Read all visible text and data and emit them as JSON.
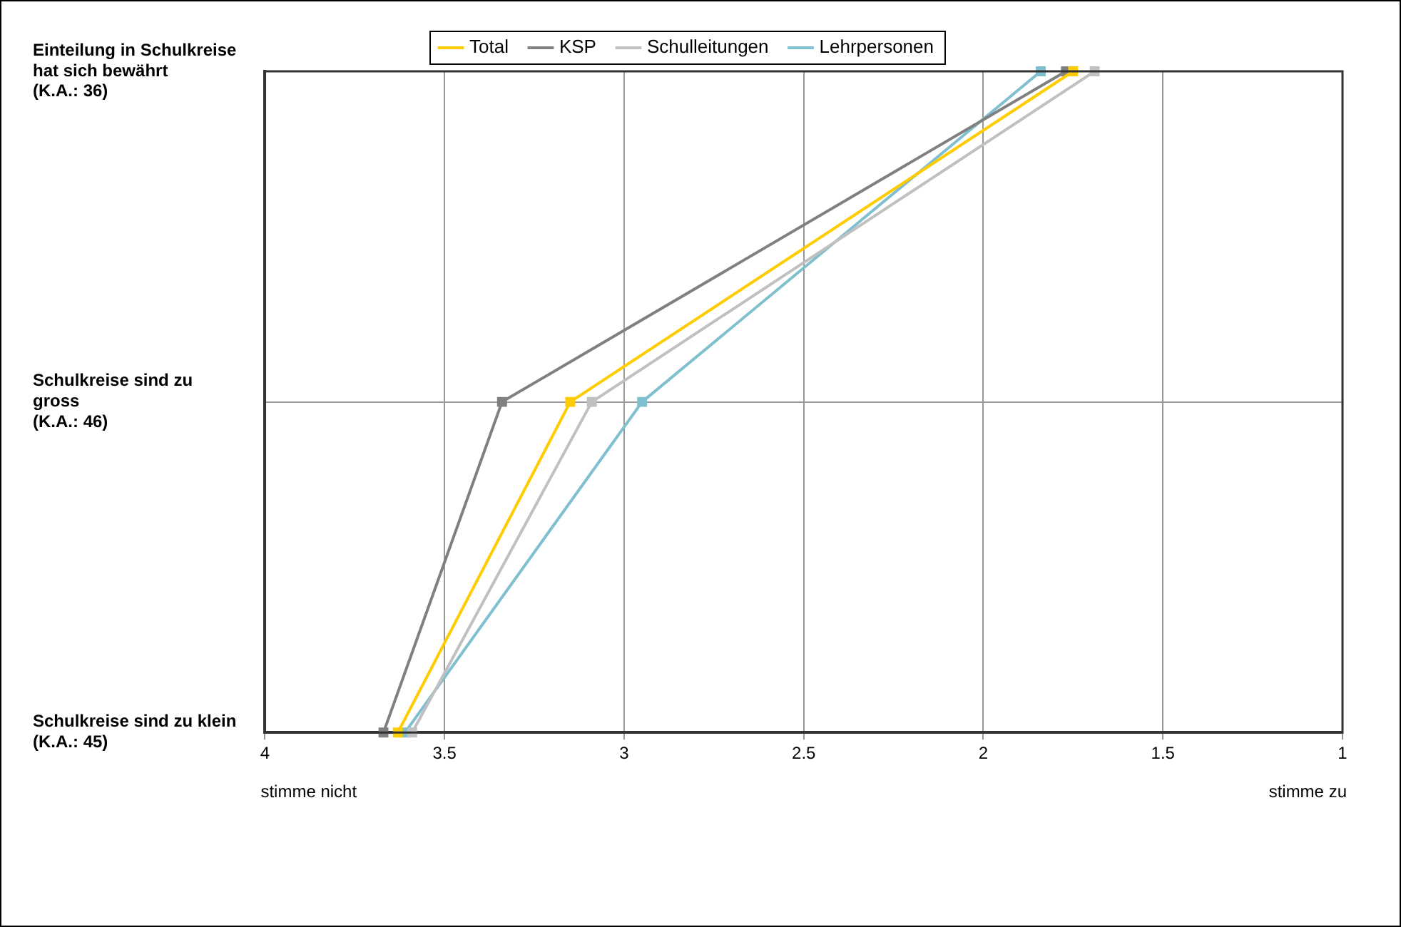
{
  "chart_data": {
    "type": "line",
    "orientation": "horizontal",
    "categories": [
      "Einteilung in Schulkreise\nhat sich bewährt\n(K.A.: 36)",
      "Schulkreise sind zu\ngross\n(K.A.: 46)",
      "Schulkreise sind zu klein\n(K.A.: 45)"
    ],
    "series": [
      {
        "name": "Total",
        "color": "#ffcc00",
        "values": [
          1.75,
          3.15,
          3.63
        ]
      },
      {
        "name": "KSP",
        "color": "#808080",
        "values": [
          1.77,
          3.34,
          3.67
        ]
      },
      {
        "name": "Schulleitungen",
        "color": "#c0c0c0",
        "values": [
          1.69,
          3.09,
          3.59
        ]
      },
      {
        "name": "Lehrpersonen",
        "color": "#7fbfd0",
        "values": [
          1.84,
          2.95,
          3.61
        ]
      }
    ],
    "xlim": [
      4,
      1
    ],
    "xticks": [
      4,
      3.5,
      3,
      2.5,
      2,
      1.5,
      1
    ],
    "annotations": [
      "stimme nicht",
      "stimme zu"
    ],
    "grid": true,
    "legend": "top",
    "marker": "square",
    "line_style": "solid"
  }
}
